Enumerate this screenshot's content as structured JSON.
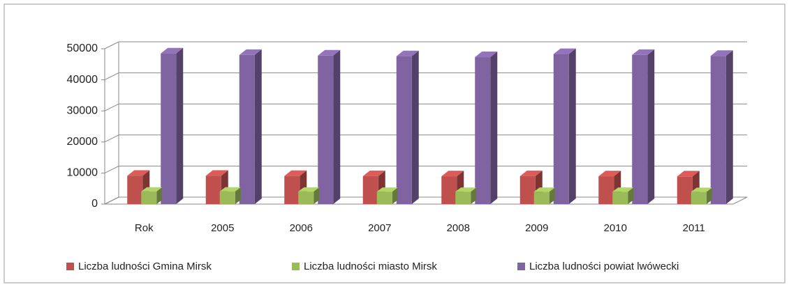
{
  "chart_data": {
    "type": "bar3d",
    "categories": [
      "Rok",
      "2005",
      "2006",
      "2007",
      "2008",
      "2009",
      "2010",
      "2011"
    ],
    "series": [
      {
        "name": "Liczba ludności Gmina Mirsk",
        "color": "#c0504d",
        "values": [
          9100,
          9100,
          9050,
          9000,
          8950,
          9000,
          8950,
          8900
        ]
      },
      {
        "name": "Liczba ludności miasto Mirsk",
        "color": "#9bbb59",
        "values": [
          4100,
          4100,
          4050,
          4000,
          4000,
          4000,
          4000,
          3950
        ]
      },
      {
        "name": "Liczba ludności powiat lwówecki",
        "color": "#8064a2",
        "values": [
          48500,
          48000,
          47800,
          47600,
          47300,
          48300,
          48000,
          47700
        ]
      }
    ],
    "ylim": [
      0,
      50000
    ],
    "yticks": [
      0,
      10000,
      20000,
      30000,
      40000,
      50000
    ],
    "grid": true,
    "legend": "bottom"
  }
}
